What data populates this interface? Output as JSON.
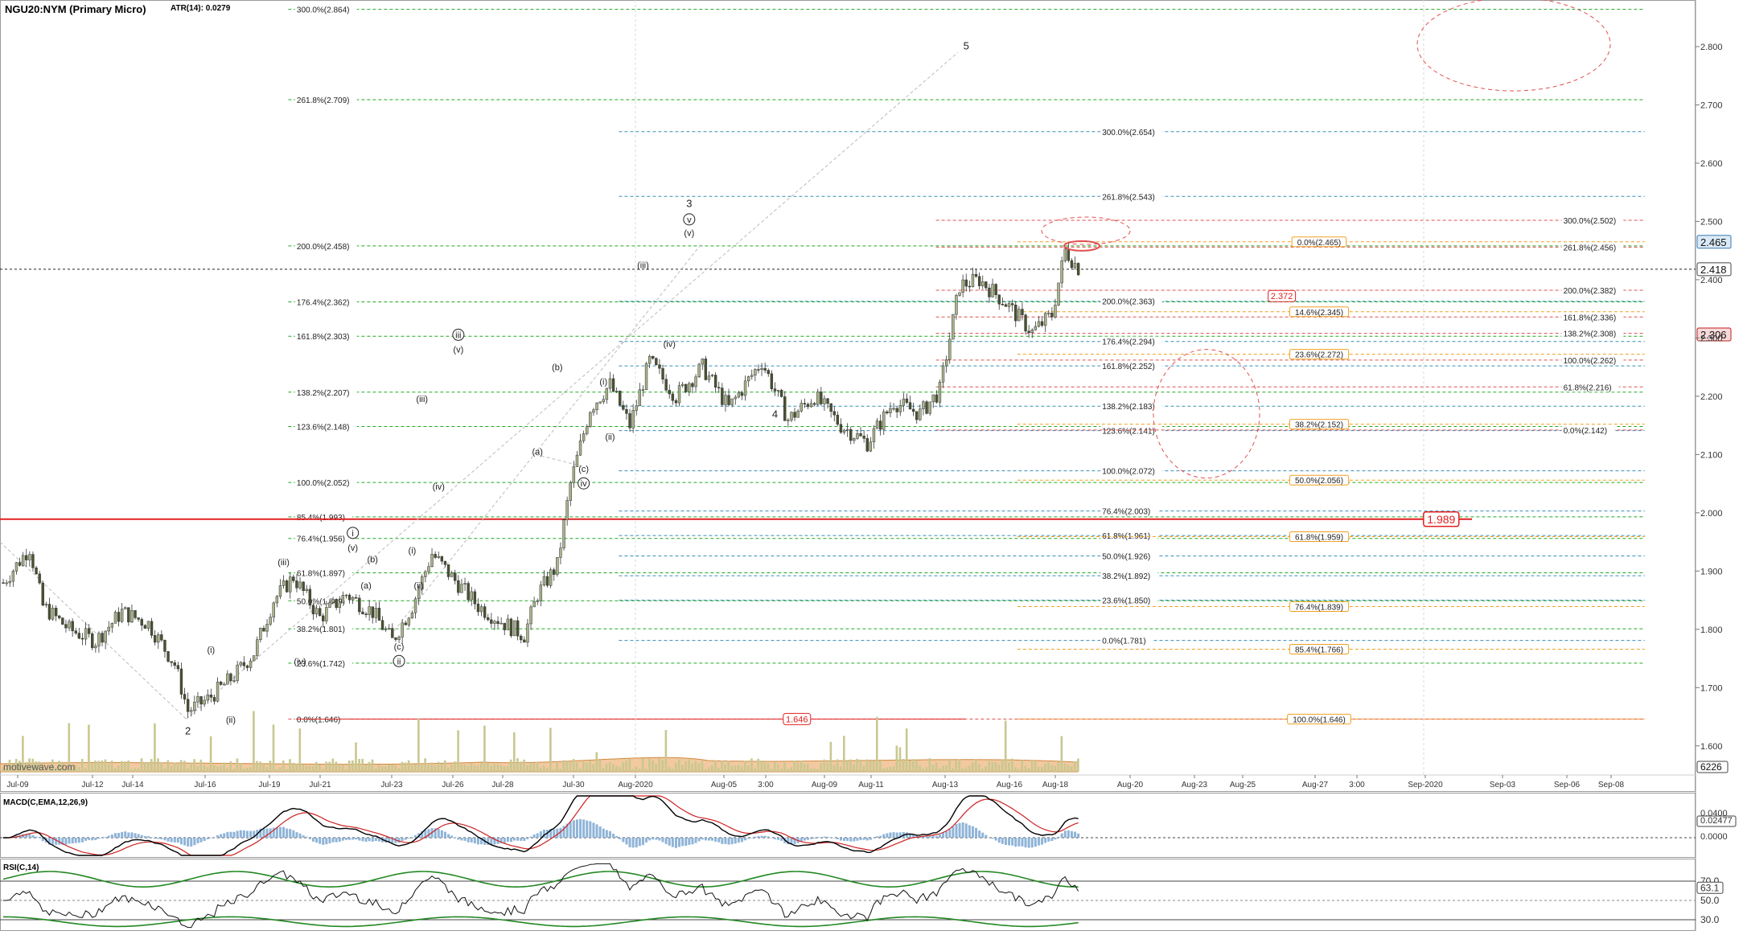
{
  "header": {
    "symbol": "NGU20:NYM (Primary Micro)",
    "atr": "ATR(14): 0.0279",
    "watermark": "motivewave.com"
  },
  "colors": {
    "fib_green": "#22aa22",
    "fib_blue": "#3a8fb5",
    "fib_red": "#e05050",
    "fib_orange": "#f0a020",
    "price_line": "#e02020",
    "candle_up": "#ffffff",
    "candle_down": "#2a2a2a",
    "volume": "#c8c890",
    "macd": "#000000",
    "signal": "#cc2222",
    "histogram": "#8fb4d8",
    "rsi_band": "#228822"
  },
  "chart_data": {
    "type": "candlestick",
    "title": "NGU20:NYM (Primary Micro)",
    "ylim": [
      1.55,
      2.88
    ],
    "y_ticks": [
      "2.800",
      "2.700",
      "2.600",
      "2.500",
      "2.400",
      "2.300",
      "2.200",
      "2.100",
      "2.000",
      "1.900",
      "1.800",
      "1.700",
      "1.600"
    ],
    "x_ticks": [
      "Jul-09",
      "Jul-12",
      "Jul-14",
      "Jul-16",
      "Jul-19",
      "Jul-21",
      "Jul-23",
      "Jul-26",
      "Jul-28",
      "Jul-30",
      "Aug-2020",
      "Aug-05",
      "3:00",
      "Aug-09",
      "Aug-11",
      "Aug-13",
      "Aug-16",
      "Aug-18",
      "Aug-20",
      "Aug-23",
      "Aug-25",
      "Aug-27",
      "3:00",
      "Sep-2020",
      "Sep-03",
      "Sep-06",
      "Sep-08"
    ],
    "price_path": [
      [
        0,
        1.88
      ],
      [
        8,
        1.94
      ],
      [
        12,
        1.84
      ],
      [
        20,
        1.8
      ],
      [
        28,
        1.78
      ],
      [
        36,
        1.83
      ],
      [
        44,
        1.81
      ],
      [
        52,
        1.74
      ],
      [
        56,
        1.66
      ],
      [
        62,
        1.68
      ],
      [
        70,
        1.72
      ],
      [
        76,
        1.76
      ],
      [
        82,
        1.85
      ],
      [
        88,
        1.89
      ],
      [
        96,
        1.82
      ],
      [
        104,
        1.86
      ],
      [
        112,
        1.83
      ],
      [
        118,
        1.78
      ],
      [
        124,
        1.84
      ],
      [
        130,
        1.93
      ],
      [
        136,
        1.89
      ],
      [
        144,
        1.84
      ],
      [
        152,
        1.81
      ],
      [
        158,
        1.79
      ],
      [
        162,
        1.86
      ],
      [
        168,
        1.91
      ],
      [
        172,
        2.05
      ],
      [
        178,
        2.18
      ],
      [
        184,
        2.22
      ],
      [
        190,
        2.15
      ],
      [
        196,
        2.26
      ],
      [
        204,
        2.2
      ],
      [
        212,
        2.25
      ],
      [
        220,
        2.18
      ],
      [
        230,
        2.26
      ],
      [
        238,
        2.16
      ],
      [
        246,
        2.2
      ],
      [
        254,
        2.15
      ],
      [
        262,
        2.12
      ],
      [
        270,
        2.19
      ],
      [
        278,
        2.17
      ],
      [
        284,
        2.21
      ],
      [
        290,
        2.39
      ],
      [
        296,
        2.4
      ],
      [
        304,
        2.36
      ],
      [
        312,
        2.31
      ],
      [
        318,
        2.34
      ],
      [
        322,
        2.45
      ],
      [
        326,
        2.42
      ]
    ],
    "levels": [
      {
        "label": "300.0%(2.864)",
        "value": 2.864,
        "color": "green",
        "x0": 0.17,
        "x1": 0.97,
        "lx": 0.175
      },
      {
        "label": "261.8%(2.709)",
        "value": 2.709,
        "color": "green",
        "x0": 0.17,
        "x1": 0.97,
        "lx": 0.175
      },
      {
        "label": "200.0%(2.458)",
        "value": 2.458,
        "color": "green",
        "x0": 0.17,
        "x1": 0.97,
        "lx": 0.175
      },
      {
        "label": "176.4%(2.362)",
        "value": 2.362,
        "color": "green",
        "x0": 0.17,
        "x1": 0.97,
        "lx": 0.175
      },
      {
        "label": "161.8%(2.303)",
        "value": 2.303,
        "color": "green",
        "x0": 0.17,
        "x1": 0.97,
        "lx": 0.175
      },
      {
        "label": "138.2%(2.207)",
        "value": 2.207,
        "color": "green",
        "x0": 0.17,
        "x1": 0.97,
        "lx": 0.175
      },
      {
        "label": "123.6%(2.148)",
        "value": 2.148,
        "color": "green",
        "x0": 0.17,
        "x1": 0.97,
        "lx": 0.175
      },
      {
        "label": "100.0%(2.052)",
        "value": 2.052,
        "color": "green",
        "x0": 0.17,
        "x1": 0.97,
        "lx": 0.175
      },
      {
        "label": "85.4%(1.993)",
        "value": 1.993,
        "color": "green",
        "x0": 0.17,
        "x1": 0.97,
        "lx": 0.175
      },
      {
        "label": "76.4%(1.956)",
        "value": 1.956,
        "color": "green",
        "x0": 0.17,
        "x1": 0.97,
        "lx": 0.175
      },
      {
        "label": "61.8%(1.897)",
        "value": 1.897,
        "color": "green",
        "x0": 0.17,
        "x1": 0.97,
        "lx": 0.175
      },
      {
        "label": "50.0%(1.849)",
        "value": 1.849,
        "color": "green",
        "x0": 0.17,
        "x1": 0.97,
        "lx": 0.175
      },
      {
        "label": "38.2%(1.801)",
        "value": 1.801,
        "color": "green",
        "x0": 0.17,
        "x1": 0.97,
        "lx": 0.175
      },
      {
        "label": "23.6%(1.742)",
        "value": 1.742,
        "color": "green",
        "x0": 0.17,
        "x1": 0.97,
        "lx": 0.175
      },
      {
        "label": "0.0%(1.646)",
        "value": 1.646,
        "color": "red",
        "x0": 0.17,
        "x1": 0.97,
        "lx": 0.175
      },
      {
        "label": "300.0%(2.654)",
        "value": 2.654,
        "color": "blue",
        "x0": 0.365,
        "x1": 0.97,
        "lx": 0.65
      },
      {
        "label": "261.8%(2.543)",
        "value": 2.543,
        "color": "blue",
        "x0": 0.365,
        "x1": 0.97,
        "lx": 0.65
      },
      {
        "label": "200.0%(2.363)",
        "value": 2.363,
        "color": "blue",
        "x0": 0.365,
        "x1": 0.97,
        "lx": 0.65
      },
      {
        "label": "176.4%(2.294)",
        "value": 2.294,
        "color": "blue",
        "x0": 0.365,
        "x1": 0.97,
        "lx": 0.65
      },
      {
        "label": "161.8%(2.252)",
        "value": 2.252,
        "color": "blue",
        "x0": 0.365,
        "x1": 0.97,
        "lx": 0.65
      },
      {
        "label": "138.2%(2.183)",
        "value": 2.183,
        "color": "blue",
        "x0": 0.365,
        "x1": 0.97,
        "lx": 0.65
      },
      {
        "label": "123.6%(2.141)",
        "value": 2.141,
        "color": "blue",
        "x0": 0.365,
        "x1": 0.97,
        "lx": 0.65
      },
      {
        "label": "100.0%(2.072)",
        "value": 2.072,
        "color": "blue",
        "x0": 0.365,
        "x1": 0.97,
        "lx": 0.65
      },
      {
        "label": "76.4%(2.003)",
        "value": 2.003,
        "color": "blue",
        "x0": 0.365,
        "x1": 0.97,
        "lx": 0.65
      },
      {
        "label": "61.8%(1.961)",
        "value": 1.961,
        "color": "blue",
        "x0": 0.365,
        "x1": 0.97,
        "lx": 0.65
      },
      {
        "label": "50.0%(1.926)",
        "value": 1.926,
        "color": "blue",
        "x0": 0.365,
        "x1": 0.97,
        "lx": 0.65
      },
      {
        "label": "38.2%(1.892)",
        "value": 1.892,
        "color": "blue",
        "x0": 0.365,
        "x1": 0.97,
        "lx": 0.65
      },
      {
        "label": "23.6%(1.850)",
        "value": 1.85,
        "color": "blue",
        "x0": 0.365,
        "x1": 0.97,
        "lx": 0.65
      },
      {
        "label": "0.0%(1.781)",
        "value": 1.781,
        "color": "blue",
        "x0": 0.365,
        "x1": 0.97,
        "lx": 0.65
      },
      {
        "label": "300.0%(2.502)",
        "value": 2.502,
        "color": "red",
        "x0": 0.552,
        "x1": 0.97,
        "lx": 0.922
      },
      {
        "label": "261.8%(2.456)",
        "value": 2.456,
        "color": "red",
        "x0": 0.552,
        "x1": 0.97,
        "lx": 0.922
      },
      {
        "label": "200.0%(2.382)",
        "value": 2.382,
        "color": "red",
        "x0": 0.552,
        "x1": 0.97,
        "lx": 0.922
      },
      {
        "label": "161.8%(2.336)",
        "value": 2.336,
        "color": "red",
        "x0": 0.552,
        "x1": 0.97,
        "lx": 0.922
      },
      {
        "label": "138.2%(2.308)",
        "value": 2.308,
        "color": "red",
        "x0": 0.552,
        "x1": 0.97,
        "lx": 0.922
      },
      {
        "label": "100.0%(2.262)",
        "value": 2.262,
        "color": "red",
        "x0": 0.552,
        "x1": 0.97,
        "lx": 0.922
      },
      {
        "label": "61.8%(2.216)",
        "value": 2.216,
        "color": "red",
        "x0": 0.552,
        "x1": 0.97,
        "lx": 0.922
      },
      {
        "label": "0.0%(2.142)",
        "value": 2.142,
        "color": "red",
        "x0": 0.552,
        "x1": 0.97,
        "lx": 0.922
      },
      {
        "label": "0.0%(2.465)",
        "value": 2.465,
        "color": "orange",
        "x0": 0.6,
        "x1": 0.97,
        "lx": 0.778,
        "boxed": true
      },
      {
        "label": "14.6%(2.345)",
        "value": 2.345,
        "color": "orange",
        "x0": 0.6,
        "x1": 0.97,
        "lx": 0.778,
        "boxed": true
      },
      {
        "label": "23.6%(2.272)",
        "value": 2.272,
        "color": "orange",
        "x0": 0.6,
        "x1": 0.97,
        "lx": 0.778,
        "boxed": true
      },
      {
        "label": "38.2%(2.152)",
        "value": 2.152,
        "color": "orange",
        "x0": 0.6,
        "x1": 0.97,
        "lx": 0.778,
        "boxed": true
      },
      {
        "label": "50.0%(2.056)",
        "value": 2.056,
        "color": "orange",
        "x0": 0.6,
        "x1": 0.97,
        "lx": 0.778,
        "boxed": true
      },
      {
        "label": "61.8%(1.959)",
        "value": 1.959,
        "color": "orange",
        "x0": 0.6,
        "x1": 0.97,
        "lx": 0.778,
        "boxed": true
      },
      {
        "label": "76.4%(1.839)",
        "value": 1.839,
        "color": "orange",
        "x0": 0.6,
        "x1": 0.97,
        "lx": 0.778,
        "boxed": true
      },
      {
        "label": "85.4%(1.766)",
        "value": 1.766,
        "color": "orange",
        "x0": 0.6,
        "x1": 0.97,
        "lx": 0.778,
        "boxed": true
      },
      {
        "label": "100.0%(1.646)",
        "value": 1.646,
        "color": "orange",
        "x0": 0.6,
        "x1": 0.97,
        "lx": 0.778,
        "boxed": true
      }
    ],
    "price_tags": [
      {
        "label": "1.646",
        "value": 1.646,
        "x": 0.47,
        "style": "red-box"
      },
      {
        "label": "1.989",
        "value": 1.989,
        "x": 0.85,
        "style": "red-box-large"
      },
      {
        "label": "2.372",
        "value": 2.372,
        "x": 0.756,
        "style": "red-box"
      }
    ],
    "axis_tags": [
      {
        "label": "2.465",
        "value": 2.465,
        "style": "blue"
      },
      {
        "label": "2.418",
        "value": 2.418,
        "style": "plain"
      },
      {
        "label": "2.306",
        "value": 2.306,
        "style": "red"
      }
    ],
    "current_price": 2.418,
    "red_line": 1.989,
    "wave_labels": [
      {
        "t": "2",
        "bar": 56,
        "v": 1.62,
        "circ": false,
        "size": 13
      },
      {
        "t": "(i)",
        "bar": 63,
        "v": 1.76,
        "circ": false
      },
      {
        "t": "(ii)",
        "bar": 69,
        "v": 1.64,
        "circ": false
      },
      {
        "t": "(iii)",
        "bar": 85,
        "v": 1.91,
        "circ": false
      },
      {
        "t": "(iv)",
        "bar": 90,
        "v": 1.74,
        "circ": false
      },
      {
        "t": "i",
        "bar": 106,
        "v": 1.96,
        "circ": true
      },
      {
        "t": "(v)",
        "bar": 106,
        "v": 1.935,
        "circ": false
      },
      {
        "t": "(b)",
        "bar": 112,
        "v": 1.915,
        "circ": false
      },
      {
        "t": "(a)",
        "bar": 110,
        "v": 1.87,
        "circ": false
      },
      {
        "t": "(c)",
        "bar": 120,
        "v": 1.765,
        "circ": false
      },
      {
        "t": "ii",
        "bar": 120,
        "v": 1.74,
        "circ": true
      },
      {
        "t": "(i)",
        "bar": 124,
        "v": 1.93,
        "circ": false
      },
      {
        "t": "(ii)",
        "bar": 126,
        "v": 1.87,
        "circ": false
      },
      {
        "t": "(iii)",
        "bar": 127,
        "v": 2.19,
        "circ": false
      },
      {
        "t": "(iv)",
        "bar": 132,
        "v": 2.04,
        "circ": false
      },
      {
        "t": "iii",
        "bar": 138,
        "v": 2.3,
        "circ": true
      },
      {
        "t": "(v)",
        "bar": 138,
        "v": 2.275,
        "circ": false
      },
      {
        "t": "(a)",
        "bar": 162,
        "v": 2.1,
        "circ": false
      },
      {
        "t": "(b)",
        "bar": 168,
        "v": 2.245,
        "circ": false
      },
      {
        "t": "(c)",
        "bar": 176,
        "v": 2.07,
        "circ": false
      },
      {
        "t": "iv",
        "bar": 176,
        "v": 2.045,
        "circ": true
      },
      {
        "t": "(i)",
        "bar": 182,
        "v": 2.22,
        "circ": false
      },
      {
        "t": "(ii)",
        "bar": 184,
        "v": 2.125,
        "circ": false
      },
      {
        "t": "(iii)",
        "bar": 194,
        "v": 2.42,
        "circ": false
      },
      {
        "t": "(iv)",
        "bar": 202,
        "v": 2.285,
        "circ": false
      },
      {
        "t": "(v)",
        "bar": 208,
        "v": 2.475,
        "circ": false
      },
      {
        "t": "v",
        "bar": 208,
        "v": 2.498,
        "circ": true
      },
      {
        "t": "3",
        "bar": 208,
        "v": 2.525,
        "circ": false,
        "size": 13
      },
      {
        "t": "4",
        "bar": 234,
        "v": 2.163,
        "circ": false,
        "size": 13
      },
      {
        "t": "5",
        "bar": 292,
        "v": 2.795,
        "circ": false,
        "size": 13
      }
    ]
  },
  "macd": {
    "title": "MACD(C,EMA,12,26,9)",
    "ticks": [
      "0.0400",
      "0.02477",
      "0.0000"
    ]
  },
  "rsi": {
    "title": "RSI(C,14)",
    "ticks": [
      "70.0",
      "63.1",
      "50.0",
      "30.0"
    ]
  },
  "volume_label": "6226"
}
